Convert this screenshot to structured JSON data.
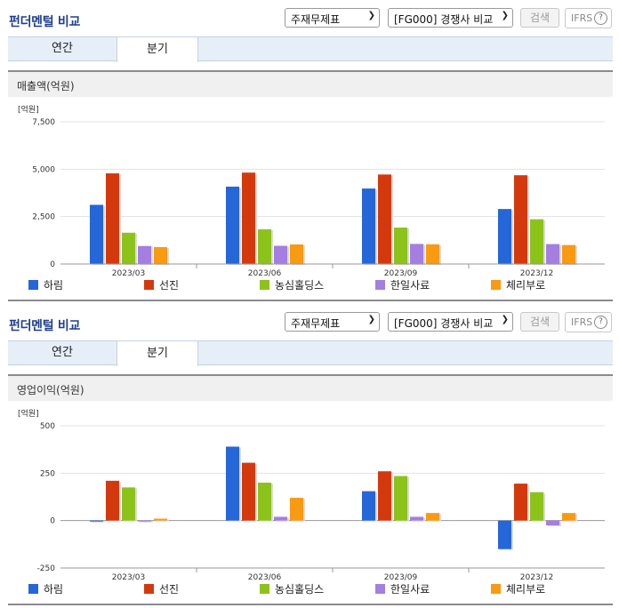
{
  "sections": [
    {
      "title": "펀더멘털 비교",
      "statement_select": "주재무제표",
      "compare_select": "[FG000] 경쟁사 비교",
      "search_button": "검색",
      "ifrs_label": "IFRS",
      "help_glyph": "?",
      "tabs": [
        "연간",
        "분기"
      ],
      "active_tab": "분기",
      "panel_title": "매출액(억원)"
    },
    {
      "title": "펀더멘털 비교",
      "statement_select": "주재무제표",
      "compare_select": "[FG000] 경쟁사 비교",
      "search_button": "검색",
      "ifrs_label": "IFRS",
      "help_glyph": "?",
      "tabs": [
        "연간",
        "분기"
      ],
      "active_tab": "분기",
      "panel_title": "영업이익(억원)"
    }
  ],
  "chart_data": [
    {
      "type": "bar",
      "unit_label": "[억원]",
      "categories": [
        "2023/03",
        "2023/06",
        "2023/09",
        "2023/12"
      ],
      "ylim": [
        0,
        7500
      ],
      "yticks": [
        0,
        2500,
        5000,
        7500
      ],
      "ytick_labels": [
        "0",
        "2,500",
        "5,000",
        "7,500"
      ],
      "grid": true,
      "legend_position": "bottom",
      "series": [
        {
          "name": "하림",
          "color": "#2566d8",
          "values": [
            3120,
            4080,
            3980,
            2900
          ]
        },
        {
          "name": "선진",
          "color": "#d4390e",
          "values": [
            4780,
            4820,
            4720,
            4680
          ]
        },
        {
          "name": "농심홀딩스",
          "color": "#8cc31b",
          "values": [
            1650,
            1830,
            1920,
            2360
          ]
        },
        {
          "name": "한일사료",
          "color": "#a47ee0",
          "values": [
            950,
            960,
            1060,
            1050
          ]
        },
        {
          "name": "체리부로",
          "color": "#f89a12",
          "values": [
            890,
            1030,
            1040,
            1000
          ]
        }
      ]
    },
    {
      "type": "bar",
      "unit_label": "[억원]",
      "categories": [
        "2023/03",
        "2023/06",
        "2023/09",
        "2023/12"
      ],
      "ylim": [
        -250,
        500
      ],
      "yticks": [
        -250,
        0,
        250,
        500
      ],
      "ytick_labels": [
        "-250",
        "0",
        "250",
        "500"
      ],
      "grid": true,
      "legend_position": "bottom",
      "series": [
        {
          "name": "하림",
          "color": "#2566d8",
          "values": [
            -5,
            390,
            155,
            -150
          ]
        },
        {
          "name": "선진",
          "color": "#d4390e",
          "values": [
            210,
            305,
            260,
            195
          ]
        },
        {
          "name": "농심홀딩스",
          "color": "#8cc31b",
          "values": [
            175,
            200,
            235,
            150
          ]
        },
        {
          "name": "한일사료",
          "color": "#a47ee0",
          "values": [
            -5,
            20,
            20,
            -25
          ]
        },
        {
          "name": "체리부로",
          "color": "#f89a12",
          "values": [
            10,
            120,
            40,
            40
          ]
        }
      ]
    }
  ]
}
